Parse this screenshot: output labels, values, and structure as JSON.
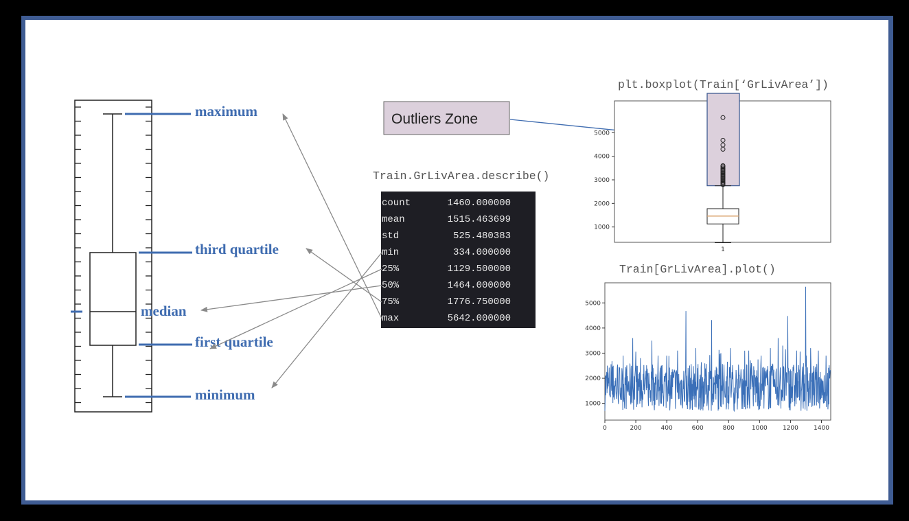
{
  "labels": {
    "maximum": "maximum",
    "third_quartile": "third quartile",
    "median": "median",
    "first_quartile": "first quartile",
    "minimum": "minimum"
  },
  "describe": {
    "title": "Train.GrLivArea.describe()",
    "rows": [
      {
        "key": "count",
        "value": "1460.000000"
      },
      {
        "key": "mean",
        "value": "1515.463699"
      },
      {
        "key": "std",
        "value": "525.480383"
      },
      {
        "key": "min",
        "value": "334.000000"
      },
      {
        "key": "25%",
        "value": "1129.500000"
      },
      {
        "key": "50%",
        "value": "1464.000000"
      },
      {
        "key": "75%",
        "value": "1776.750000"
      },
      {
        "key": "max",
        "value": "5642.000000"
      }
    ]
  },
  "outliers_zone": "Outliers Zone",
  "colors": {
    "label_blue": "#3f6cb0",
    "line_blue": "#3f6cb0",
    "slide_border": "#3f5c93",
    "zone_fill": "#dcd0dc",
    "table_bg": "#1e1e24",
    "arrow": "#8a8a8a"
  },
  "chart_data": [
    {
      "type": "box",
      "title": "plt.boxplot(Train[‘GrLivArea’])",
      "categories": [
        "1"
      ],
      "ylim": [
        0,
        6000
      ],
      "yticks": [
        "1000",
        "2000",
        "3000",
        "4000",
        "5000"
      ],
      "box": {
        "min": 334,
        "q1": 1129.5,
        "median": 1464,
        "q3": 1776.75,
        "whisker_high": 2750,
        "max": 5642
      },
      "outliers": [
        2800,
        2850,
        2900,
        2950,
        3000,
        3050,
        3100,
        3150,
        3200,
        3250,
        3300,
        3350,
        3400,
        3450,
        3500,
        3560,
        3600,
        4300,
        4480,
        4680,
        5642
      ]
    },
    {
      "type": "line",
      "title": "Train[GrLivArea].plot()",
      "xlim": [
        0,
        1460
      ],
      "ylim": [
        334,
        5800
      ],
      "xticks": [
        "0",
        "200",
        "400",
        "600",
        "800",
        "1000",
        "1200",
        "1400"
      ],
      "yticks": [
        "1000",
        "2000",
        "3000",
        "4000",
        "5000"
      ],
      "series": [
        {
          "peaks": [
            [
              54,
              2500
            ],
            [
              118,
              2900
            ],
            [
              180,
              3600
            ],
            [
              230,
              2800
            ],
            [
              304,
              3500
            ],
            [
              400,
              2900
            ],
            [
              470,
              3100
            ],
            [
              524,
              4676
            ],
            [
              588,
              3200
            ],
            [
              691,
              4316
            ],
            [
              750,
              3000
            ],
            [
              812,
              3200
            ],
            [
              930,
              3100
            ],
            [
              1010,
              2900
            ],
            [
              1070,
              3200
            ],
            [
              1120,
              3600
            ],
            [
              1150,
              3300
            ],
            [
              1182,
              4476
            ],
            [
              1240,
              3100
            ],
            [
              1298,
              5642
            ],
            [
              1330,
              3200
            ],
            [
              1380,
              3100
            ],
            [
              1430,
              2900
            ]
          ]
        }
      ]
    }
  ]
}
